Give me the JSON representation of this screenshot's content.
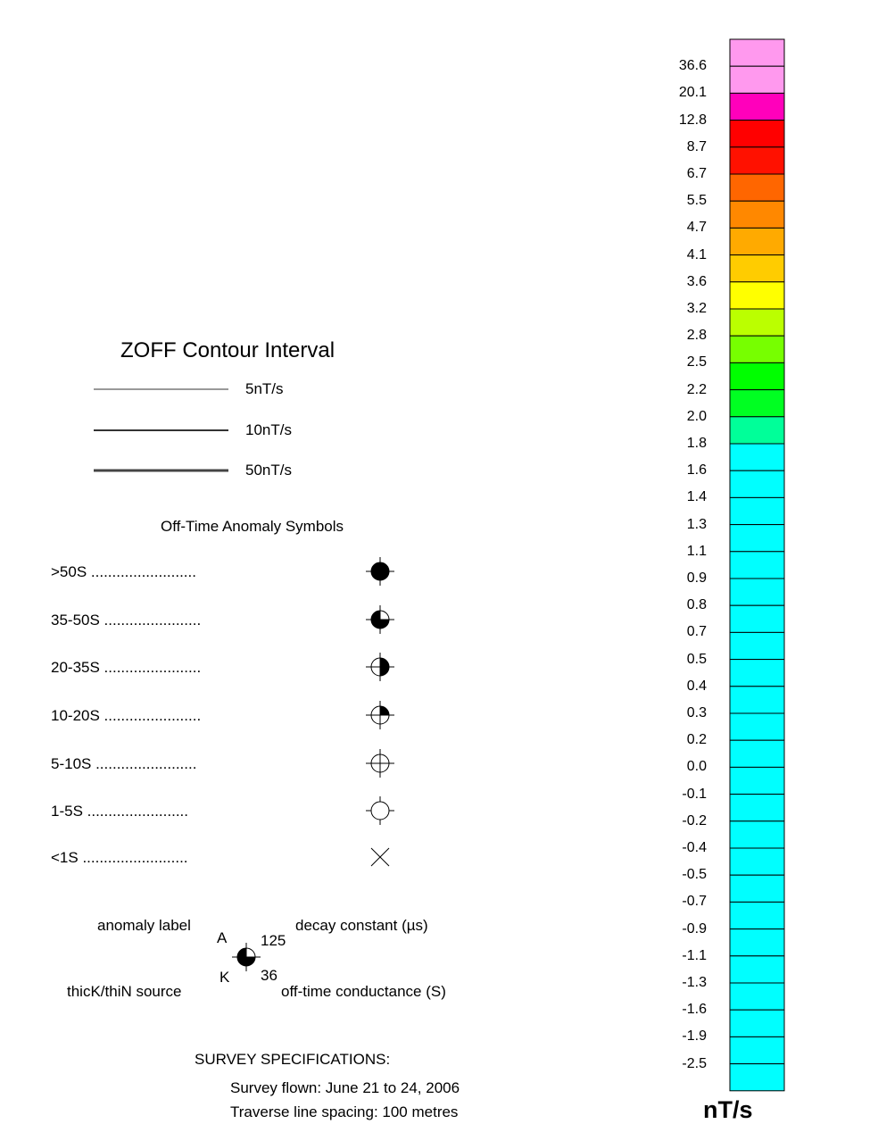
{
  "contour_legend": {
    "title": "ZOFF Contour Interval",
    "lines": [
      {
        "label": "5nT/s",
        "weight": "thin"
      },
      {
        "label": "10nT/s",
        "weight": "medium"
      },
      {
        "label": "50nT/s",
        "weight": "thick"
      }
    ]
  },
  "anomaly_symbols": {
    "title": "Off-Time Anomaly Symbols",
    "items": [
      {
        "label": ">50S .........................",
        "symbol": "full-filled-circle-icon"
      },
      {
        "label": "35-50S .......................",
        "symbol": "three-quarter-filled-circle-icon"
      },
      {
        "label": "20-35S .......................",
        "symbol": "half-filled-circle-icon"
      },
      {
        "label": "10-20S .......................",
        "symbol": "quarter-filled-circle-icon"
      },
      {
        "label": "5-10S ........................",
        "symbol": "crosshair-circle-icon"
      },
      {
        "label": "1-5S ........................",
        "symbol": "open-circle-icon"
      },
      {
        "label": "<1S .........................",
        "symbol": "x-cross-icon"
      }
    ]
  },
  "anomaly_key": {
    "anomaly_label": "anomaly label",
    "letter_a": "A",
    "decay_value": "125",
    "decay_constant": "decay constant (µs)",
    "letter_k": "K",
    "conductance_value": "36",
    "source": "thicK/thiN source",
    "conductance": "off-time conductance (S)"
  },
  "survey": {
    "title": "SURVEY SPECIFICATIONS:",
    "lines": [
      "Survey flown: June 21 to 24, 2006",
      "Traverse line spacing: 100 metres"
    ]
  },
  "color_scale": {
    "unit": "nT/s",
    "ticks": [
      "36.6",
      "20.1",
      "12.8",
      "8.7",
      "6.7",
      "5.5",
      "4.7",
      "4.1",
      "3.6",
      "3.2",
      "2.8",
      "2.5",
      "2.2",
      "2.0",
      "1.8",
      "1.6",
      "1.4",
      "1.3",
      "1.1",
      "0.9",
      "0.8",
      "0.7",
      "0.5",
      "0.4",
      "0.3",
      "0.2",
      "0.0",
      "-0.1",
      "-0.2",
      "-0.4",
      "-0.5",
      "-0.7",
      "-0.9",
      "-1.1",
      "-1.3",
      "-1.6",
      "-1.9",
      "-2.5"
    ],
    "colors": [
      "#ff99ee",
      "#ff99ee",
      "#ff00bb",
      "#ff0000",
      "#ff1100",
      "#ff6600",
      "#ff8800",
      "#ffaa00",
      "#ffcc00",
      "#ffff00",
      "#bbff00",
      "#77ff00",
      "#00ff00",
      "#00ff22",
      "#00ff99",
      "#00ffff",
      "#00ffff",
      "#00ffff",
      "#00ffff",
      "#00ffff",
      "#00ffff",
      "#00ffff",
      "#00ffff",
      "#00ffff",
      "#00ffff",
      "#00ffff",
      "#00ffff",
      "#00ffff",
      "#00ffff",
      "#00ffff",
      "#00ffff",
      "#00ffff",
      "#00ffff",
      "#00ffff",
      "#00ffff",
      "#00ffff",
      "#00ffff",
      "#00ffff",
      "#00ffff"
    ]
  }
}
